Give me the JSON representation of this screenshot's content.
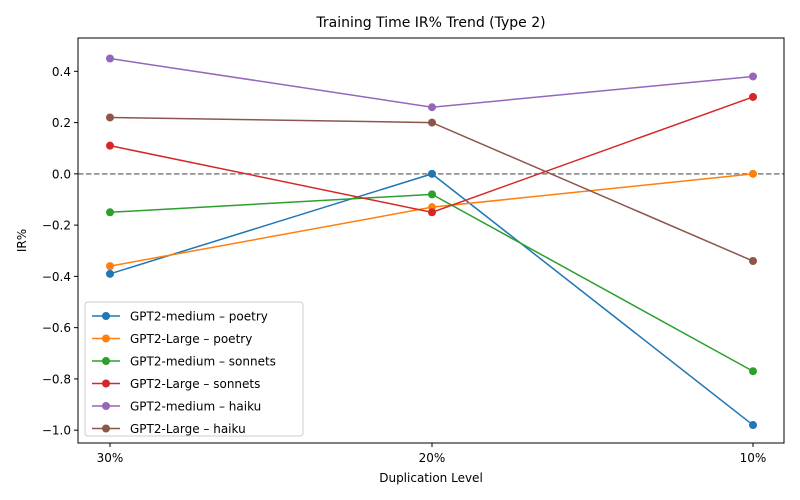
{
  "chart_data": {
    "type": "line",
    "title": "Training Time IR% Trend (Type 2)",
    "xlabel": "Duplication Level",
    "ylabel": "IR%",
    "categories": [
      "30%",
      "20%",
      "10%"
    ],
    "ylim": [
      -1.05,
      0.53
    ],
    "yticks": [
      -1.0,
      -0.8,
      -0.6,
      -0.4,
      -0.2,
      0.0,
      0.2,
      0.4
    ],
    "ytick_labels": [
      "−1.0",
      "−0.8",
      "−0.6",
      "−0.4",
      "−0.2",
      "0.0",
      "0.2",
      "0.4"
    ],
    "reference_line": {
      "y": 0.0,
      "style": "dashed",
      "color": "#808080"
    },
    "grid": false,
    "legend": {
      "position": "lower-left"
    },
    "series": [
      {
        "name": "GPT2-medium – poetry",
        "color": "#1f77b4",
        "values": [
          -0.39,
          0.0,
          -0.98
        ]
      },
      {
        "name": "GPT2-Large – poetry",
        "color": "#ff7f0e",
        "values": [
          -0.36,
          -0.13,
          0.0
        ]
      },
      {
        "name": "GPT2-medium – sonnets",
        "color": "#2ca02c",
        "values": [
          -0.15,
          -0.08,
          -0.77
        ]
      },
      {
        "name": "GPT2-Large – sonnets",
        "color": "#d62728",
        "values": [
          0.11,
          -0.15,
          0.3
        ]
      },
      {
        "name": "GPT2-medium – haiku",
        "color": "#9467bd",
        "values": [
          0.45,
          0.26,
          0.38
        ]
      },
      {
        "name": "GPT2-Large – haiku",
        "color": "#8c564b",
        "values": [
          0.22,
          0.2,
          -0.34
        ]
      }
    ]
  }
}
